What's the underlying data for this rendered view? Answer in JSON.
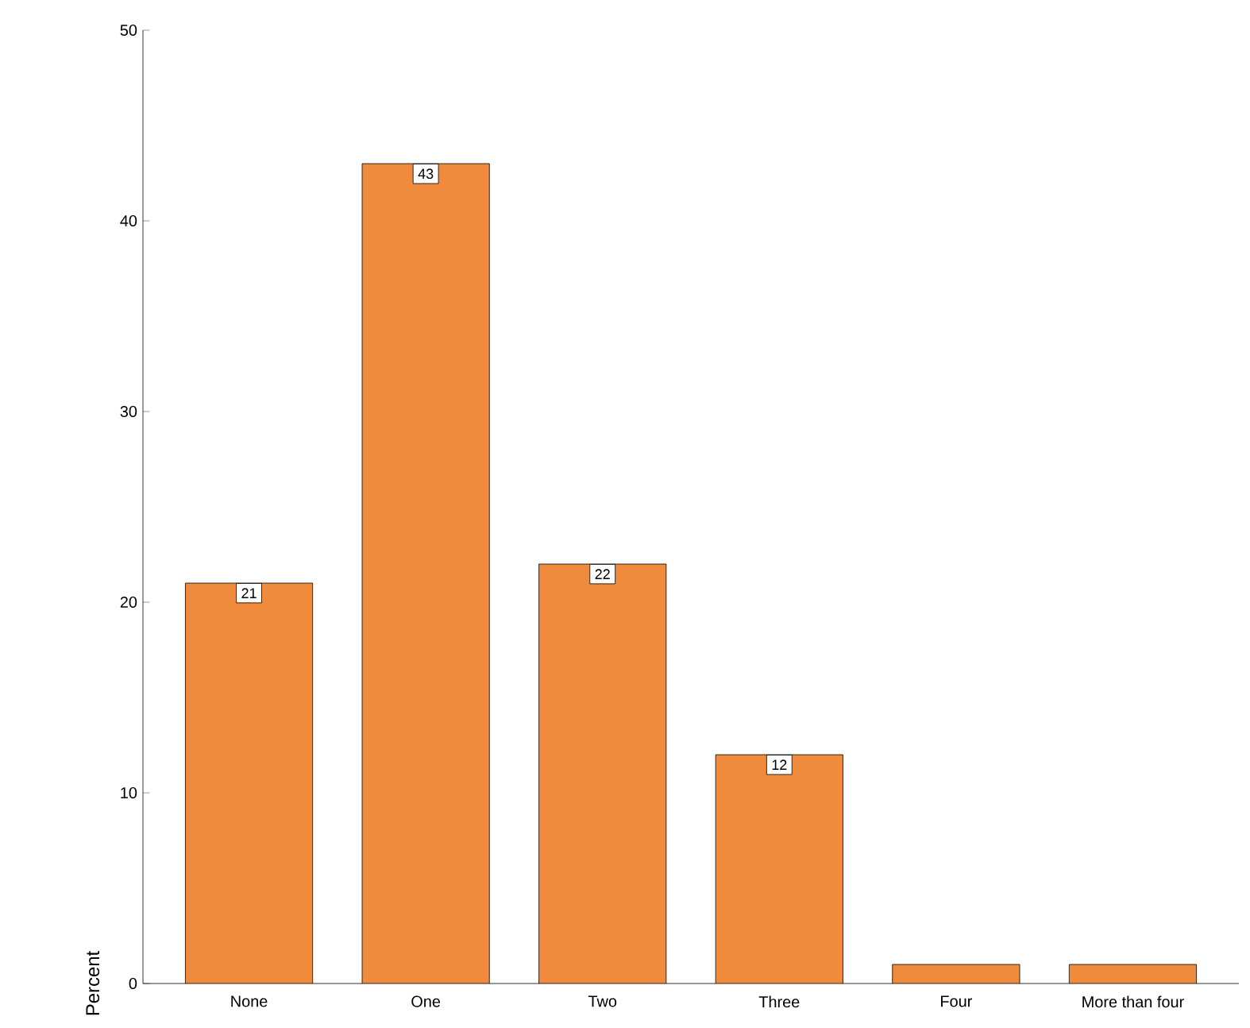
{
  "chart_data": {
    "type": "bar",
    "ylabel": "Percent",
    "categories": [
      "None",
      "One",
      "Two",
      "Three",
      "Four",
      "More than four"
    ],
    "values": [
      21,
      43,
      22,
      12,
      1,
      1
    ],
    "value_labels": [
      "21",
      "43",
      "22",
      "12",
      null,
      null
    ],
    "color": "#f08a3c",
    "ylim": [
      0,
      50
    ],
    "yticks": [
      0,
      10,
      20,
      30,
      40,
      50
    ],
    "grid": false
  }
}
